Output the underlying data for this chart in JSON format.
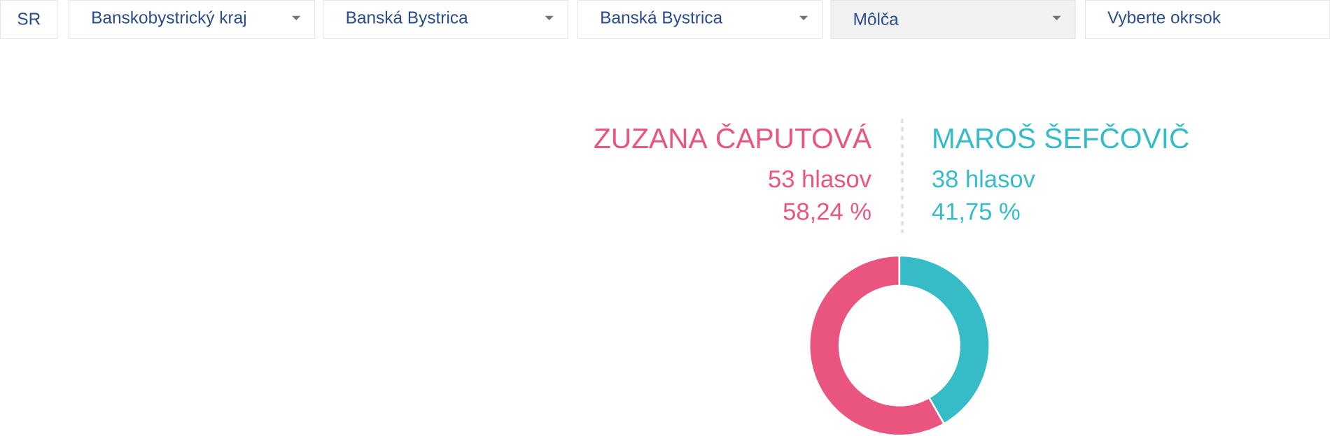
{
  "chart_data": {
    "type": "donut",
    "categories": [
      "ZUZANA ČAPUTOVÁ",
      "MAROŠ ŠEFČOVIČ"
    ],
    "values": [
      53,
      38
    ],
    "value_labels": [
      "53 hlasov",
      "38 hlasov"
    ],
    "colors": [
      "#e9557f",
      "#36bcc7"
    ],
    "annotations": [
      "SR",
      "Banskobystrický kraj",
      "Banská Bystrica",
      "Banská Bystrica",
      "Môlča",
      "Vyberte okrsok",
      "58,24 %",
      "41,75 %"
    ]
  }
}
